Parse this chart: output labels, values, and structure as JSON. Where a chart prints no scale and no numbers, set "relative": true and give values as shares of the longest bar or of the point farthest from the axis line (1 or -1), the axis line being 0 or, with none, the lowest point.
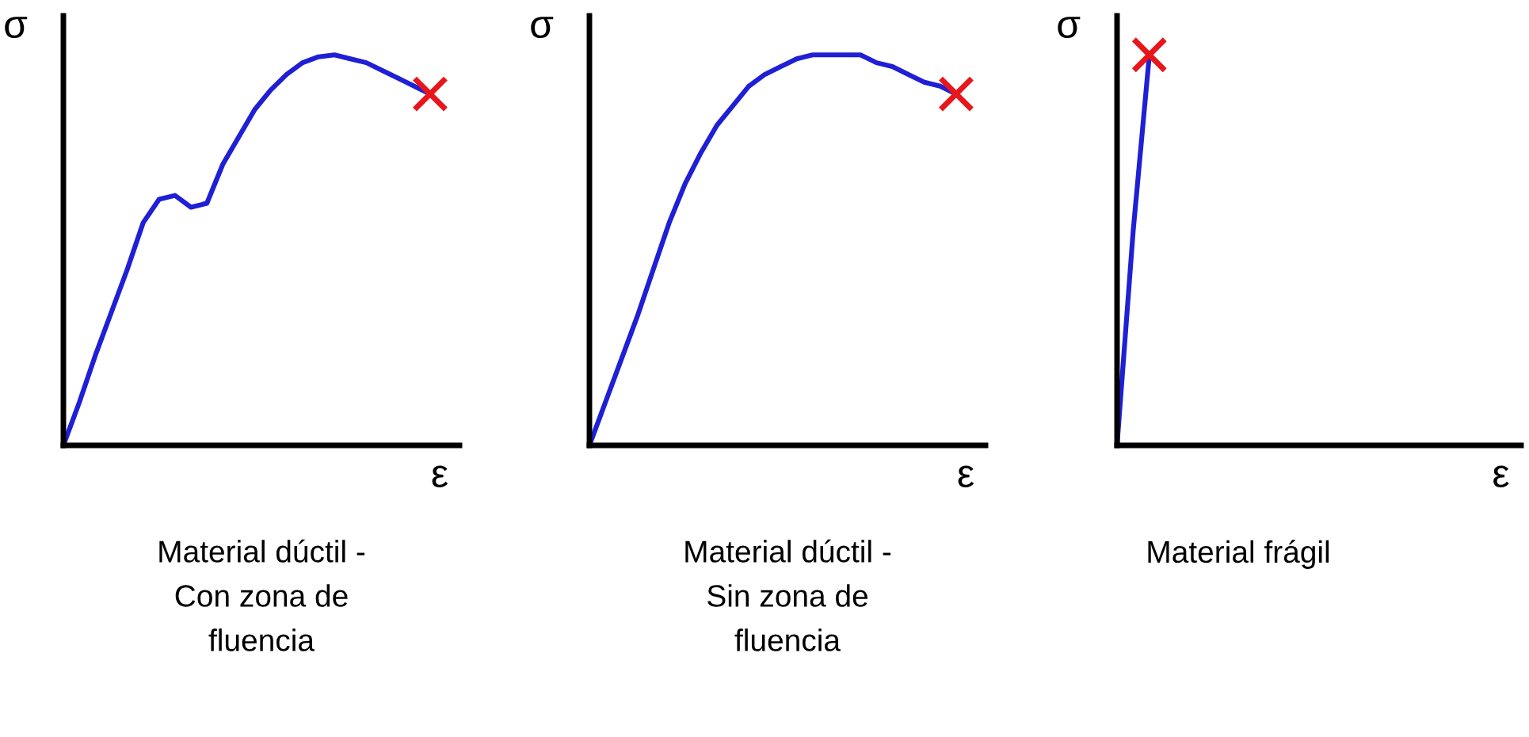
{
  "chart_data": [
    {
      "type": "line",
      "relative": true,
      "title": "Material dúctil -\nCon zona de\nfluencia",
      "xlabel": "ε",
      "ylabel": "σ",
      "categories": [
        null,
        null,
        null,
        null,
        null,
        null,
        null,
        null,
        null,
        null,
        null,
        null,
        null,
        null,
        null,
        null,
        null,
        null,
        null,
        null,
        null,
        null,
        null,
        null
      ],
      "series": [
        {
          "color": "#1f1fd6",
          "values": [
            0,
            0.11,
            0.23,
            0.34,
            0.45,
            0.57,
            0.63,
            0.64,
            0.61,
            0.62,
            0.72,
            0.79,
            0.86,
            0.91,
            0.95,
            0.98,
            0.995,
            1,
            0.99,
            0.98,
            0.96,
            0.94,
            0.92,
            0.9
          ]
        }
      ]
    },
    {
      "type": "line",
      "relative": true,
      "title": "Material dúctil -\nSin zona de\nfluencia",
      "xlabel": "ε",
      "ylabel": "σ",
      "categories": [
        null,
        null,
        null,
        null,
        null,
        null,
        null,
        null,
        null,
        null,
        null,
        null,
        null,
        null,
        null,
        null,
        null,
        null,
        null,
        null,
        null,
        null,
        null,
        null
      ],
      "series": [
        {
          "color": "#1f1fd6",
          "values": [
            0,
            0.11,
            0.22,
            0.33,
            0.45,
            0.57,
            0.67,
            0.75,
            0.82,
            0.87,
            0.92,
            0.95,
            0.97,
            0.99,
            1.0,
            1,
            1,
            1.0,
            0.98,
            0.97,
            0.95,
            0.93,
            0.92,
            0.9
          ]
        }
      ]
    },
    {
      "type": "line",
      "relative": true,
      "title": "Material frágil",
      "xlabel": "ε",
      "ylabel": "σ",
      "categories": [
        null,
        null,
        null,
        null,
        null,
        null,
        null,
        null,
        null,
        null,
        null,
        null,
        null,
        null,
        null,
        null,
        null,
        null,
        null,
        null,
        null,
        null,
        null,
        null,
        null,
        null
      ],
      "series": [
        {
          "color": "#1f1fd6",
          "values": [
            0,
            0.55,
            1,
            null,
            null,
            null,
            null,
            null,
            null,
            null,
            null,
            null,
            null,
            null,
            null,
            null,
            null,
            null,
            null,
            null,
            null,
            null,
            null,
            null,
            null,
            null
          ]
        }
      ]
    }
  ]
}
